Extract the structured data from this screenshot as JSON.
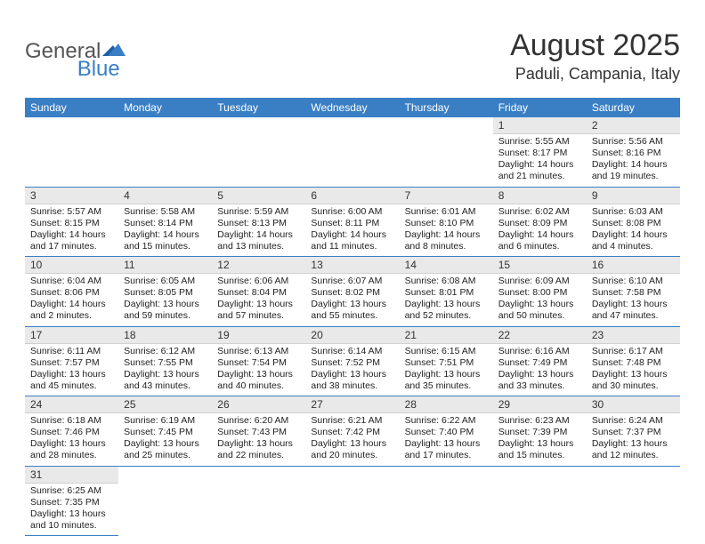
{
  "logo": {
    "text1": "General",
    "text2": "Blue"
  },
  "title": "August 2025",
  "location": "Paduli, Campania, Italy",
  "colors": {
    "header_bg": "#3a7fc4",
    "header_fg": "#ffffff",
    "daynum_bg": "#e9e9e9",
    "border": "#3a7fc4",
    "logo_blue": "#3a7fc4",
    "logo_grey": "#555555"
  },
  "weekdays": [
    "Sunday",
    "Monday",
    "Tuesday",
    "Wednesday",
    "Thursday",
    "Friday",
    "Saturday"
  ],
  "weeks": [
    [
      {
        "empty": true
      },
      {
        "empty": true
      },
      {
        "empty": true
      },
      {
        "empty": true
      },
      {
        "empty": true
      },
      {
        "n": "1",
        "sunrise": "5:55 AM",
        "sunset": "8:17 PM",
        "daylight": "14 hours and 21 minutes."
      },
      {
        "n": "2",
        "sunrise": "5:56 AM",
        "sunset": "8:16 PM",
        "daylight": "14 hours and 19 minutes."
      }
    ],
    [
      {
        "n": "3",
        "sunrise": "5:57 AM",
        "sunset": "8:15 PM",
        "daylight": "14 hours and 17 minutes."
      },
      {
        "n": "4",
        "sunrise": "5:58 AM",
        "sunset": "8:14 PM",
        "daylight": "14 hours and 15 minutes."
      },
      {
        "n": "5",
        "sunrise": "5:59 AM",
        "sunset": "8:13 PM",
        "daylight": "14 hours and 13 minutes."
      },
      {
        "n": "6",
        "sunrise": "6:00 AM",
        "sunset": "8:11 PM",
        "daylight": "14 hours and 11 minutes."
      },
      {
        "n": "7",
        "sunrise": "6:01 AM",
        "sunset": "8:10 PM",
        "daylight": "14 hours and 8 minutes."
      },
      {
        "n": "8",
        "sunrise": "6:02 AM",
        "sunset": "8:09 PM",
        "daylight": "14 hours and 6 minutes."
      },
      {
        "n": "9",
        "sunrise": "6:03 AM",
        "sunset": "8:08 PM",
        "daylight": "14 hours and 4 minutes."
      }
    ],
    [
      {
        "n": "10",
        "sunrise": "6:04 AM",
        "sunset": "8:06 PM",
        "daylight": "14 hours and 2 minutes."
      },
      {
        "n": "11",
        "sunrise": "6:05 AM",
        "sunset": "8:05 PM",
        "daylight": "13 hours and 59 minutes."
      },
      {
        "n": "12",
        "sunrise": "6:06 AM",
        "sunset": "8:04 PM",
        "daylight": "13 hours and 57 minutes."
      },
      {
        "n": "13",
        "sunrise": "6:07 AM",
        "sunset": "8:02 PM",
        "daylight": "13 hours and 55 minutes."
      },
      {
        "n": "14",
        "sunrise": "6:08 AM",
        "sunset": "8:01 PM",
        "daylight": "13 hours and 52 minutes."
      },
      {
        "n": "15",
        "sunrise": "6:09 AM",
        "sunset": "8:00 PM",
        "daylight": "13 hours and 50 minutes."
      },
      {
        "n": "16",
        "sunrise": "6:10 AM",
        "sunset": "7:58 PM",
        "daylight": "13 hours and 47 minutes."
      }
    ],
    [
      {
        "n": "17",
        "sunrise": "6:11 AM",
        "sunset": "7:57 PM",
        "daylight": "13 hours and 45 minutes."
      },
      {
        "n": "18",
        "sunrise": "6:12 AM",
        "sunset": "7:55 PM",
        "daylight": "13 hours and 43 minutes."
      },
      {
        "n": "19",
        "sunrise": "6:13 AM",
        "sunset": "7:54 PM",
        "daylight": "13 hours and 40 minutes."
      },
      {
        "n": "20",
        "sunrise": "6:14 AM",
        "sunset": "7:52 PM",
        "daylight": "13 hours and 38 minutes."
      },
      {
        "n": "21",
        "sunrise": "6:15 AM",
        "sunset": "7:51 PM",
        "daylight": "13 hours and 35 minutes."
      },
      {
        "n": "22",
        "sunrise": "6:16 AM",
        "sunset": "7:49 PM",
        "daylight": "13 hours and 33 minutes."
      },
      {
        "n": "23",
        "sunrise": "6:17 AM",
        "sunset": "7:48 PM",
        "daylight": "13 hours and 30 minutes."
      }
    ],
    [
      {
        "n": "24",
        "sunrise": "6:18 AM",
        "sunset": "7:46 PM",
        "daylight": "13 hours and 28 minutes."
      },
      {
        "n": "25",
        "sunrise": "6:19 AM",
        "sunset": "7:45 PM",
        "daylight": "13 hours and 25 minutes."
      },
      {
        "n": "26",
        "sunrise": "6:20 AM",
        "sunset": "7:43 PM",
        "daylight": "13 hours and 22 minutes."
      },
      {
        "n": "27",
        "sunrise": "6:21 AM",
        "sunset": "7:42 PM",
        "daylight": "13 hours and 20 minutes."
      },
      {
        "n": "28",
        "sunrise": "6:22 AM",
        "sunset": "7:40 PM",
        "daylight": "13 hours and 17 minutes."
      },
      {
        "n": "29",
        "sunrise": "6:23 AM",
        "sunset": "7:39 PM",
        "daylight": "13 hours and 15 minutes."
      },
      {
        "n": "30",
        "sunrise": "6:24 AM",
        "sunset": "7:37 PM",
        "daylight": "13 hours and 12 minutes."
      }
    ],
    [
      {
        "n": "31",
        "sunrise": "6:25 AM",
        "sunset": "7:35 PM",
        "daylight": "13 hours and 10 minutes."
      },
      {
        "empty": true
      },
      {
        "empty": true
      },
      {
        "empty": true
      },
      {
        "empty": true
      },
      {
        "empty": true
      },
      {
        "empty": true
      }
    ]
  ],
  "labels": {
    "sunrise": "Sunrise: ",
    "sunset": "Sunset: ",
    "daylight": "Daylight: "
  }
}
